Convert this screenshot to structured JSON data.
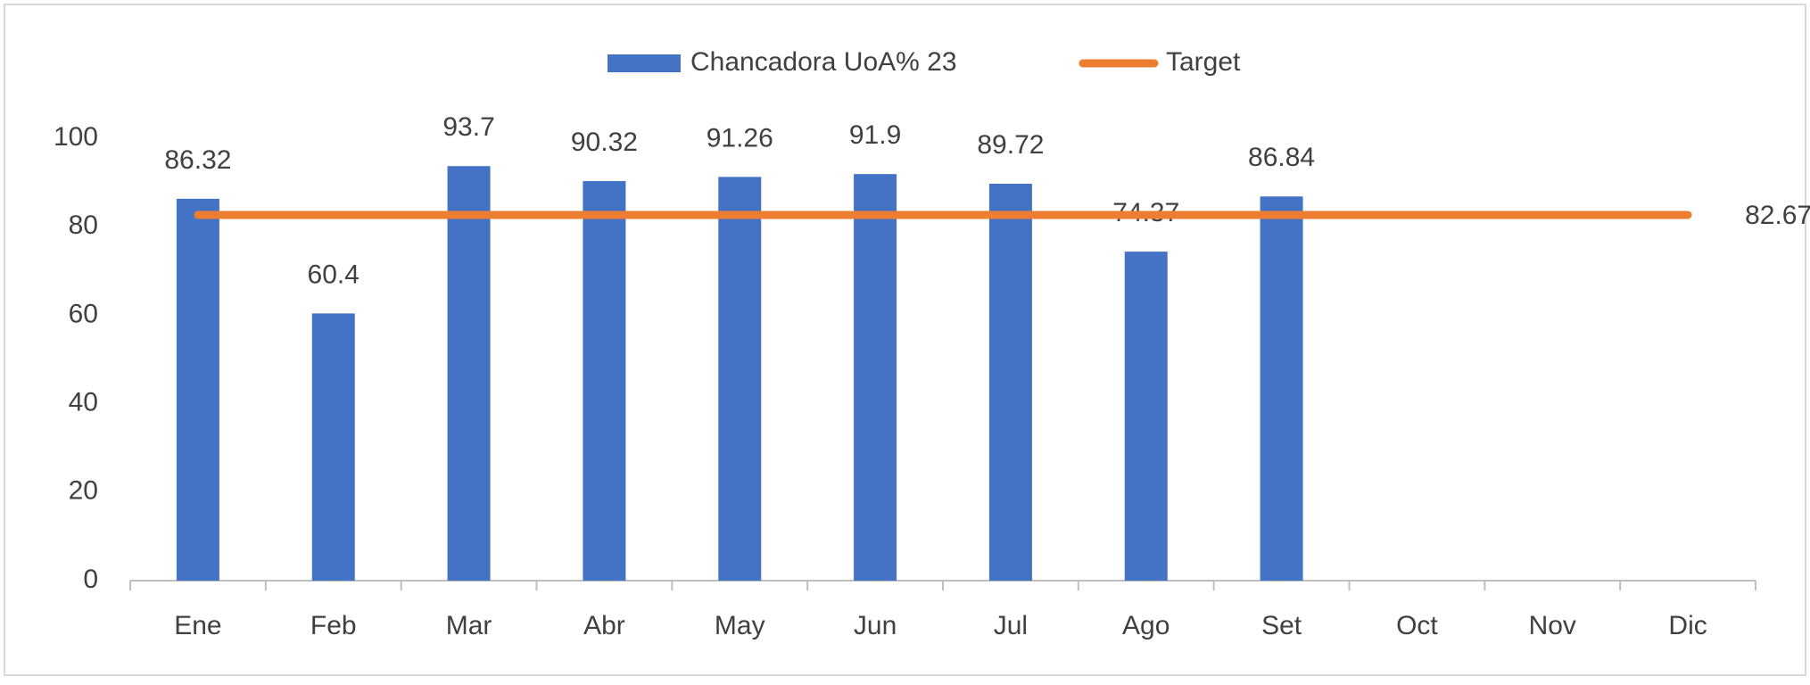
{
  "chart_data": {
    "type": "bar",
    "categories": [
      "Ene",
      "Feb",
      "Mar",
      "Abr",
      "May",
      "Jun",
      "Jul",
      "Ago",
      "Set",
      "Oct",
      "Nov",
      "Dic"
    ],
    "series": [
      {
        "name": "Chancadora UoA% 23",
        "type": "bar",
        "color": "#4472c4",
        "values": [
          86.32,
          60.4,
          93.7,
          90.32,
          91.26,
          91.9,
          89.72,
          74.37,
          86.84,
          null,
          null,
          null
        ]
      },
      {
        "name": "Target",
        "type": "line",
        "color": "#ed7d31",
        "values": [
          82.67,
          82.67,
          82.67,
          82.67,
          82.67,
          82.67,
          82.67,
          82.67,
          82.67,
          82.67,
          82.67,
          82.67
        ]
      }
    ],
    "ylim": [
      0,
      100
    ],
    "yticks": [
      0,
      20,
      40,
      60,
      80,
      100
    ],
    "grid": false,
    "legend": "top"
  }
}
